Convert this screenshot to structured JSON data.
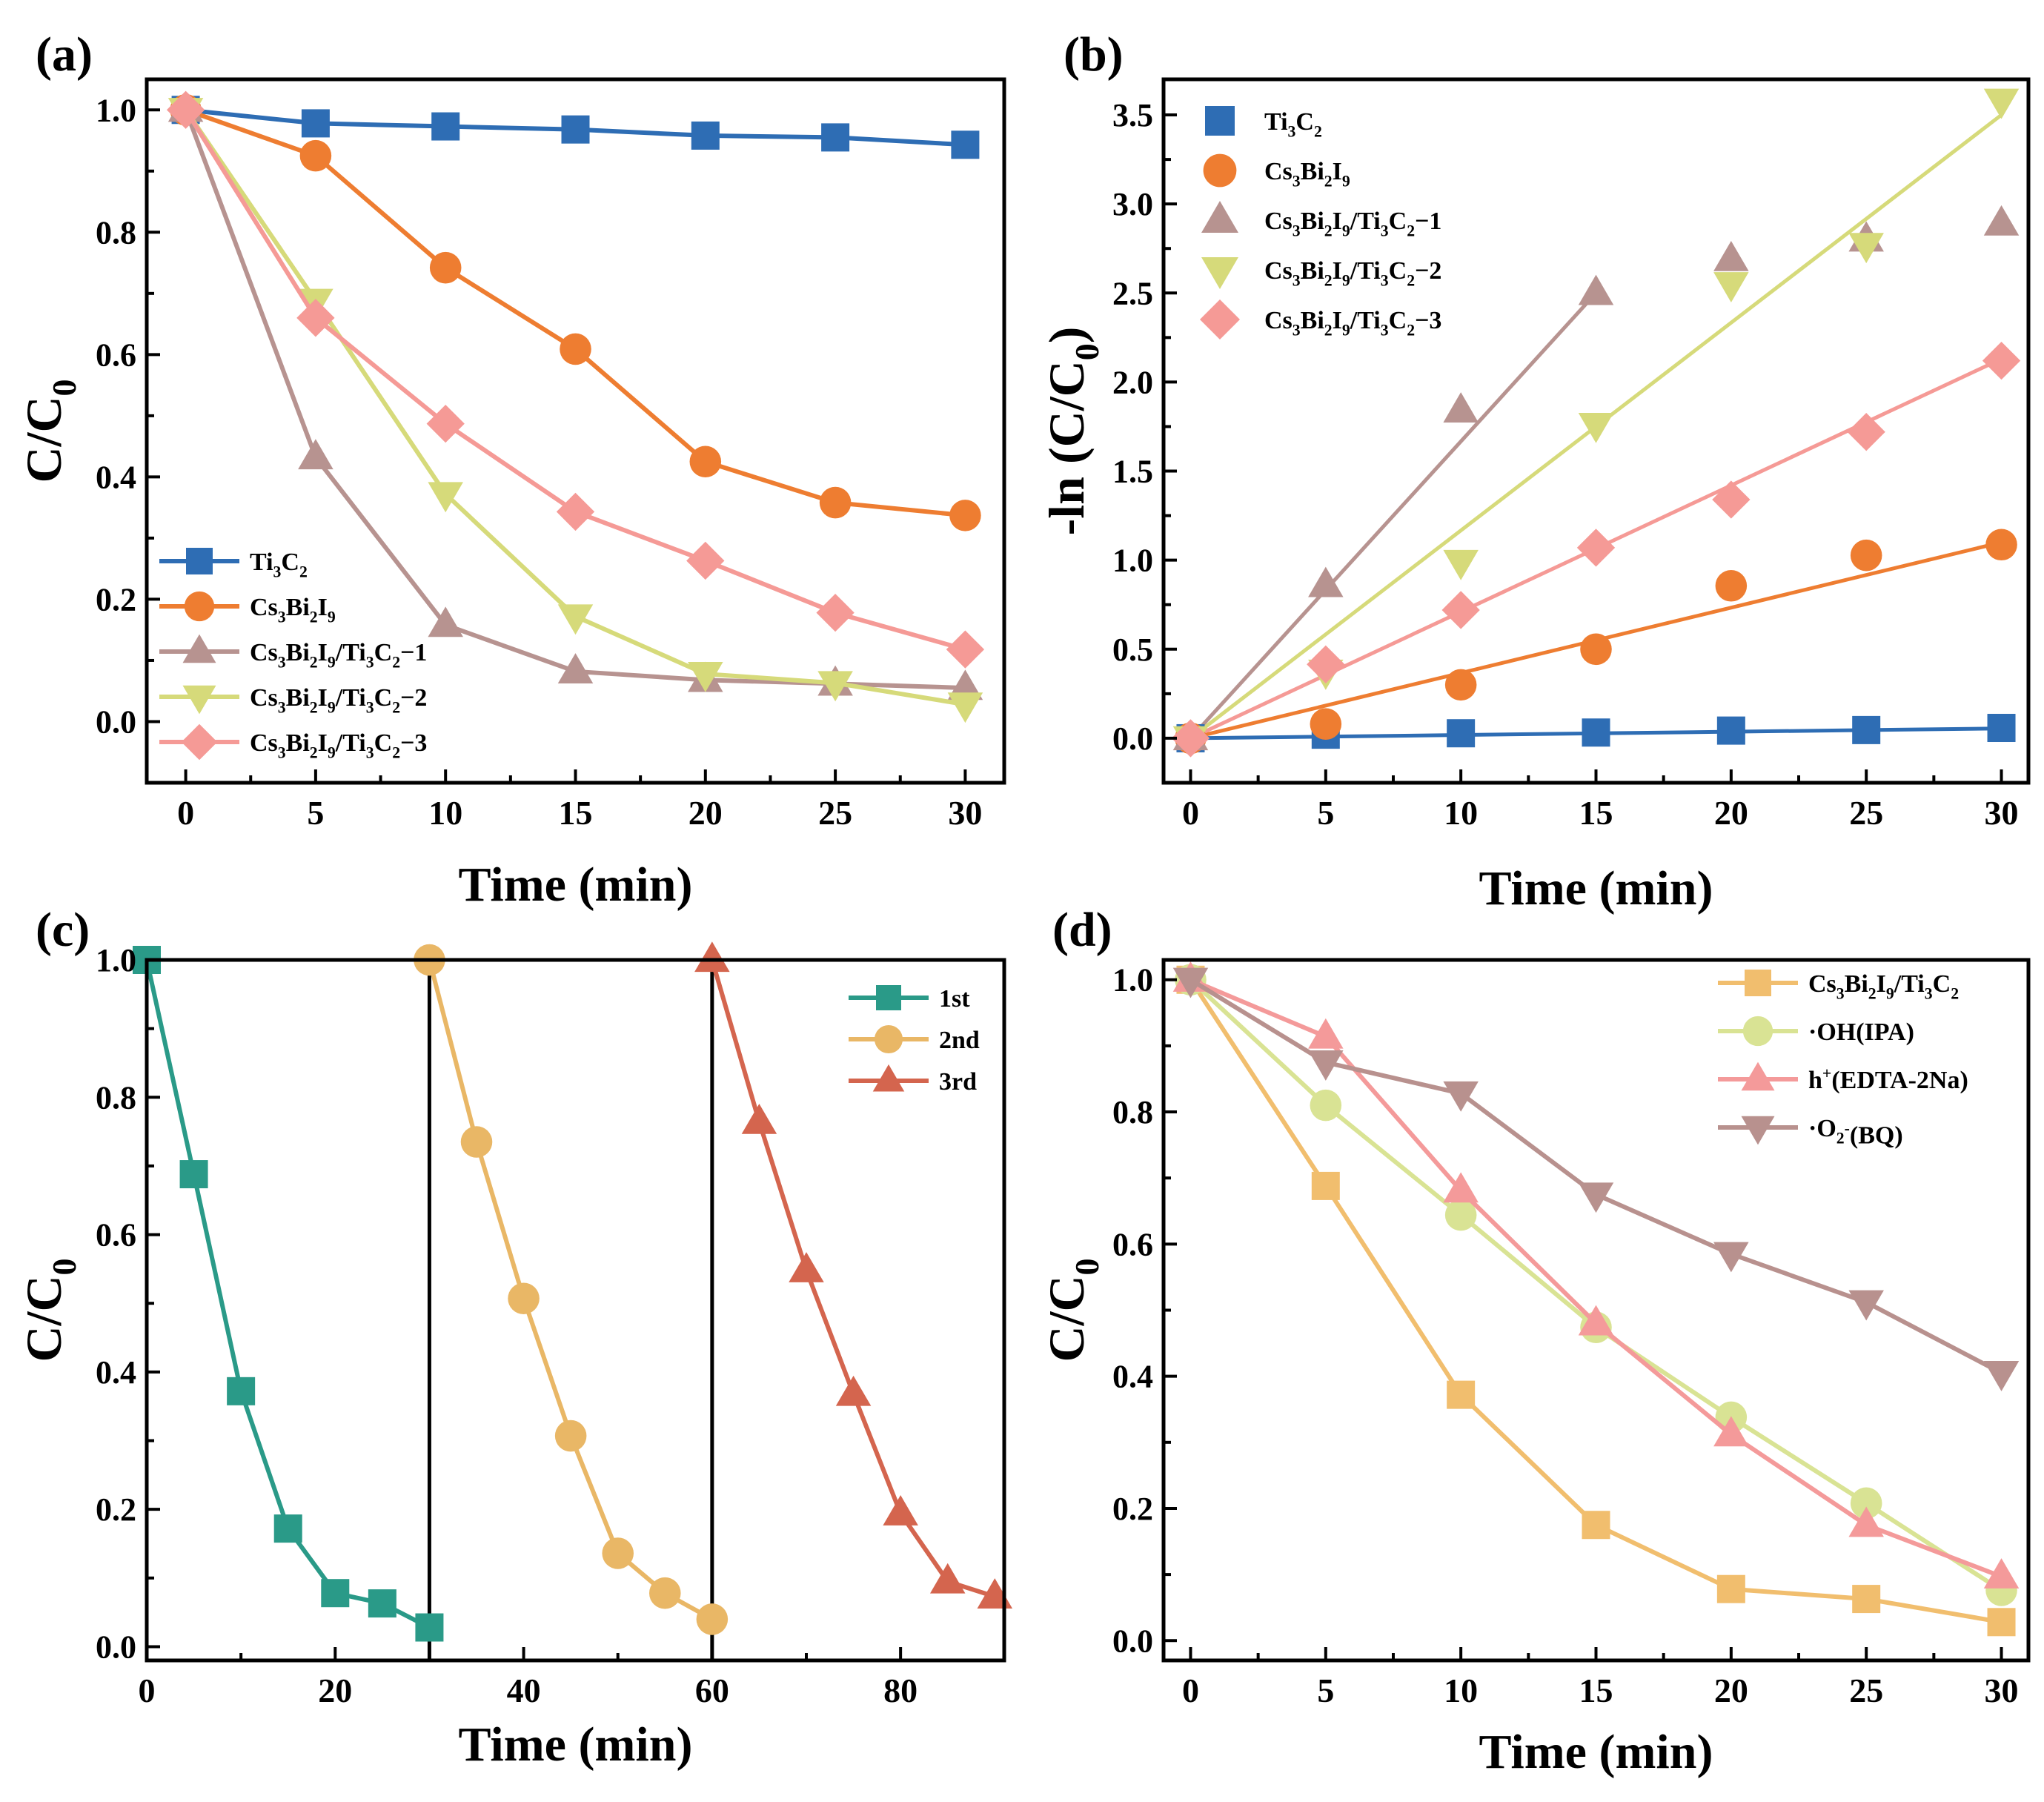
{
  "figure": {
    "description_panels": [
      "a",
      "b",
      "c",
      "d"
    ]
  },
  "chart_data": [
    {
      "panel": "(a)",
      "type": "line",
      "xlabel": "Time (min)",
      "ylabel": "C/C",
      "ylabel_sub": "0",
      "xlim": [
        -1.5,
        31.5
      ],
      "ylim": [
        -0.1,
        1.05
      ],
      "xticks": [
        0,
        5,
        10,
        15,
        20,
        25,
        30
      ],
      "xtick_labels": [
        "0",
        "5",
        "10",
        "15",
        "20",
        "25",
        "30"
      ],
      "yticks": [
        0.0,
        0.2,
        0.4,
        0.6,
        0.8,
        1.0
      ],
      "ytick_labels": [
        "0.0",
        "0.2",
        "0.4",
        "0.6",
        "0.8",
        "1.0"
      ],
      "legend_position": "bottom-left",
      "x": [
        0,
        5,
        10,
        15,
        20,
        25,
        30
      ],
      "series": [
        {
          "name": "Ti3C2",
          "legend": [
            [
              "Ti",
              ""
            ],
            [
              "3",
              "sub"
            ],
            [
              "C",
              ""
            ],
            [
              "2",
              "sub"
            ]
          ],
          "color": "#2e6db4",
          "marker": "square",
          "values": [
            1.0,
            0.978,
            0.973,
            0.968,
            0.958,
            0.955,
            0.943
          ]
        },
        {
          "name": "Cs3Bi2I9",
          "legend": [
            [
              "Cs",
              ""
            ],
            [
              "3",
              "sub"
            ],
            [
              "Bi",
              ""
            ],
            [
              "2",
              "sub"
            ],
            [
              "I",
              ""
            ],
            [
              "9",
              "sub"
            ]
          ],
          "color": "#ee7d31",
          "marker": "circle",
          "values": [
            1.0,
            0.925,
            0.742,
            0.609,
            0.425,
            0.358,
            0.337
          ]
        },
        {
          "name": "Cs3Bi2I9/Ti3C2−1",
          "legend": [
            [
              "Cs",
              ""
            ],
            [
              "3",
              "sub"
            ],
            [
              "Bi",
              ""
            ],
            [
              "2",
              "sub"
            ],
            [
              "I",
              ""
            ],
            [
              "9",
              "sub"
            ],
            [
              "/Ti",
              ""
            ],
            [
              "3",
              "sub"
            ],
            [
              "C",
              ""
            ],
            [
              "2",
              "sub"
            ],
            [
              "−1",
              ""
            ]
          ],
          "color": "#b79390",
          "marker": "triangle-up",
          "values": [
            1.0,
            0.432,
            0.158,
            0.082,
            0.068,
            0.062,
            0.055
          ]
        },
        {
          "name": "Cs3Bi2I9/Ti3C2−2",
          "legend": [
            [
              "Cs",
              ""
            ],
            [
              "3",
              "sub"
            ],
            [
              "Bi",
              ""
            ],
            [
              "2",
              "sub"
            ],
            [
              "I",
              ""
            ],
            [
              "9",
              "sub"
            ],
            [
              "/Ti",
              ""
            ],
            [
              "3",
              "sub"
            ],
            [
              "C",
              ""
            ],
            [
              "2",
              "sub"
            ],
            [
              "−2",
              ""
            ]
          ],
          "color": "#d6da7a",
          "marker": "triangle-down",
          "values": [
            1.0,
            0.688,
            0.372,
            0.172,
            0.078,
            0.063,
            0.028
          ]
        },
        {
          "name": "Cs3Bi2I9/Ti3C2−3",
          "legend": [
            [
              "Cs",
              ""
            ],
            [
              "3",
              "sub"
            ],
            [
              "Bi",
              ""
            ],
            [
              "2",
              "sub"
            ],
            [
              "I",
              ""
            ],
            [
              "9",
              "sub"
            ],
            [
              "/Ti",
              ""
            ],
            [
              "3",
              "sub"
            ],
            [
              "C",
              ""
            ],
            [
              "2",
              "sub"
            ],
            [
              "−3",
              ""
            ]
          ],
          "color": "#f59a96",
          "marker": "diamond",
          "values": [
            1.0,
            0.66,
            0.487,
            0.343,
            0.263,
            0.178,
            0.118
          ]
        }
      ]
    },
    {
      "panel": "(b)",
      "type": "scatter",
      "xlabel": "Time (min)",
      "ylabel": "-ln (C/C",
      "ylabel_sub": "0",
      "ylabel_tail": ")",
      "xlim": [
        -1,
        31
      ],
      "ylim": [
        -0.25,
        3.7
      ],
      "xticks": [
        0,
        5,
        10,
        15,
        20,
        25,
        30
      ],
      "xtick_labels": [
        "0",
        "5",
        "10",
        "15",
        "20",
        "25",
        "30"
      ],
      "yticks": [
        0.0,
        0.5,
        1.0,
        1.5,
        2.0,
        2.5,
        3.0,
        3.5
      ],
      "ytick_labels": [
        "0.0",
        "0.5",
        "1.0",
        "1.5",
        "2.0",
        "2.5",
        "3.0",
        "3.5"
      ],
      "legend_position": "top-left",
      "x": [
        0,
        5,
        10,
        15,
        20,
        25,
        30
      ],
      "series": [
        {
          "name": "Ti3C2",
          "legend": [
            [
              "Ti",
              ""
            ],
            [
              "3",
              "sub"
            ],
            [
              "C",
              ""
            ],
            [
              "2",
              "sub"
            ]
          ],
          "color": "#2e6db4",
          "marker": "square",
          "values": [
            0.0,
            0.02,
            0.028,
            0.032,
            0.043,
            0.046,
            0.058
          ],
          "fit_x": [
            0,
            30
          ],
          "fit_y": [
            0.0,
            0.055
          ]
        },
        {
          "name": "Cs3Bi2I9",
          "legend": [
            [
              "Cs",
              ""
            ],
            [
              "3",
              "sub"
            ],
            [
              "Bi",
              ""
            ],
            [
              "2",
              "sub"
            ],
            [
              "I",
              ""
            ],
            [
              "9",
              "sub"
            ]
          ],
          "color": "#ee7d31",
          "marker": "circle",
          "values": [
            0.0,
            0.08,
            0.3,
            0.5,
            0.856,
            1.027,
            1.087
          ],
          "fit_x": [
            0,
            30
          ],
          "fit_y": [
            0.0,
            1.1
          ]
        },
        {
          "name": "Cs3Bi2I9/Ti3C2−1",
          "legend": [
            [
              "Cs",
              ""
            ],
            [
              "3",
              "sub"
            ],
            [
              "Bi",
              ""
            ],
            [
              "2",
              "sub"
            ],
            [
              "I",
              ""
            ],
            [
              "9",
              "sub"
            ],
            [
              "/Ti",
              ""
            ],
            [
              "3",
              "sub"
            ],
            [
              "C",
              ""
            ],
            [
              "2",
              "sub"
            ],
            [
              "−1",
              ""
            ]
          ],
          "color": "#b79390",
          "marker": "triangle-up",
          "values": [
            0.0,
            0.86,
            1.84,
            2.5,
            2.69,
            2.8,
            2.89
          ],
          "fit_x": [
            0,
            15
          ],
          "fit_y": [
            0.0,
            2.5
          ]
        },
        {
          "name": "Cs3Bi2I9/Ti3C2−2",
          "legend": [
            [
              "Cs",
              ""
            ],
            [
              "3",
              "sub"
            ],
            [
              "Bi",
              ""
            ],
            [
              "2",
              "sub"
            ],
            [
              "I",
              ""
            ],
            [
              "9",
              "sub"
            ],
            [
              "/Ti",
              ""
            ],
            [
              "3",
              "sub"
            ],
            [
              "C",
              ""
            ],
            [
              "2",
              "sub"
            ],
            [
              "−2",
              ""
            ]
          ],
          "color": "#d6da7a",
          "marker": "triangle-down",
          "values": [
            0.0,
            0.374,
            0.99,
            1.76,
            2.55,
            2.77,
            3.58
          ],
          "fit_x": [
            0,
            30
          ],
          "fit_y": [
            0.0,
            3.5
          ]
        },
        {
          "name": "Cs3Bi2I9/Ti3C2−3",
          "legend": [
            [
              "Cs",
              ""
            ],
            [
              "3",
              "sub"
            ],
            [
              "Bi",
              ""
            ],
            [
              "2",
              "sub"
            ],
            [
              "I",
              ""
            ],
            [
              "9",
              "sub"
            ],
            [
              "/Ti",
              ""
            ],
            [
              "3",
              "sub"
            ],
            [
              "C",
              ""
            ],
            [
              "2",
              "sub"
            ],
            [
              "−3",
              ""
            ]
          ],
          "color": "#f59a96",
          "marker": "diamond",
          "values": [
            0.0,
            0.415,
            0.72,
            1.07,
            1.34,
            1.72,
            2.12
          ],
          "fit_x": [
            0,
            30
          ],
          "fit_y": [
            0.0,
            2.13
          ]
        }
      ]
    },
    {
      "panel": "(c)",
      "type": "line",
      "xlabel": "Time (min)",
      "ylabel": "C/C",
      "ylabel_sub": "0",
      "xlim": [
        0,
        91
      ],
      "ylim": [
        -0.02,
        1.0
      ],
      "xticks": [
        0,
        20,
        40,
        60,
        80
      ],
      "xtick_labels": [
        "0",
        "20",
        "40",
        "60",
        "80"
      ],
      "yticks": [
        0.0,
        0.2,
        0.4,
        0.6,
        0.8,
        1.0
      ],
      "ytick_labels": [
        "0.0",
        "0.2",
        "0.4",
        "0.6",
        "0.8",
        "1.0"
      ],
      "vlines": [
        30,
        60
      ],
      "legend_position": "top-right",
      "series": [
        {
          "name": "1st",
          "legend": [
            [
              "1st",
              ""
            ]
          ],
          "color": "#2a9a88",
          "marker": "square",
          "x": [
            0,
            5,
            10,
            15,
            20,
            25,
            30
          ],
          "values": [
            1.0,
            0.688,
            0.372,
            0.172,
            0.078,
            0.063,
            0.028
          ]
        },
        {
          "name": "2nd",
          "legend": [
            [
              "2nd",
              ""
            ]
          ],
          "color": "#e9b766",
          "marker": "circle",
          "x": [
            30,
            35,
            40,
            45,
            50,
            55,
            60
          ],
          "values": [
            1.0,
            0.735,
            0.507,
            0.307,
            0.136,
            0.078,
            0.04
          ]
        },
        {
          "name": "3rd",
          "legend": [
            [
              "3rd",
              ""
            ]
          ],
          "color": "#d4654e",
          "marker": "triangle-up",
          "x": [
            60,
            65,
            70,
            75,
            80,
            85,
            90
          ],
          "values": [
            1.0,
            0.764,
            0.548,
            0.368,
            0.194,
            0.095,
            0.073
          ]
        }
      ]
    },
    {
      "panel": "(d)",
      "type": "line",
      "xlabel": "Time (min)",
      "ylabel": "C/C",
      "ylabel_sub": "0",
      "xlim": [
        -1,
        31
      ],
      "ylim": [
        -0.03,
        1.03
      ],
      "xticks": [
        0,
        5,
        10,
        15,
        20,
        25,
        30
      ],
      "xtick_labels": [
        "0",
        "5",
        "10",
        "15",
        "20",
        "25",
        "30"
      ],
      "yticks": [
        0.0,
        0.2,
        0.4,
        0.6,
        0.8,
        1.0
      ],
      "ytick_labels": [
        "0.0",
        "0.2",
        "0.4",
        "0.6",
        "0.8",
        "1.0"
      ],
      "legend_position": "top-right",
      "x": [
        0,
        5,
        10,
        15,
        20,
        25,
        30
      ],
      "series": [
        {
          "name": "Cs3Bi2I9/Ti3C2",
          "legend": [
            [
              "Cs",
              ""
            ],
            [
              "3",
              "sub"
            ],
            [
              "Bi",
              ""
            ],
            [
              "2",
              "sub"
            ],
            [
              "I",
              ""
            ],
            [
              "9",
              "sub"
            ],
            [
              "/Ti",
              ""
            ],
            [
              "3",
              "sub"
            ],
            [
              "C",
              ""
            ],
            [
              "2",
              "sub"
            ]
          ],
          "color": "#f1be6e",
          "marker": "square",
          "values": [
            1.0,
            0.688,
            0.372,
            0.175,
            0.078,
            0.063,
            0.028
          ]
        },
        {
          "name": "·OH(IPA)",
          "legend": [
            [
              "·OH(IPA)",
              ""
            ]
          ],
          "color": "#d9e394",
          "marker": "circle",
          "values": [
            1.0,
            0.81,
            0.644,
            0.474,
            0.338,
            0.208,
            0.076
          ]
        },
        {
          "name": "h+(EDTA-2Na)",
          "legend": [
            [
              "h",
              ""
            ],
            [
              "+",
              "sup"
            ],
            [
              "(EDTA-2Na)",
              ""
            ]
          ],
          "color": "#f49a9a",
          "marker": "triangle-up",
          "values": [
            1.0,
            0.914,
            0.681,
            0.48,
            0.312,
            0.175,
            0.097
          ]
        },
        {
          "name": "·O2-(BQ)",
          "legend": [
            [
              "·O",
              ""
            ],
            [
              "2",
              "sub"
            ],
            [
              "-",
              "sup"
            ],
            [
              "(BQ)",
              ""
            ]
          ],
          "color": "#b8918e",
          "marker": "triangle-down",
          "values": [
            1.0,
            0.875,
            0.828,
            0.675,
            0.585,
            0.512,
            0.405
          ]
        }
      ]
    }
  ]
}
